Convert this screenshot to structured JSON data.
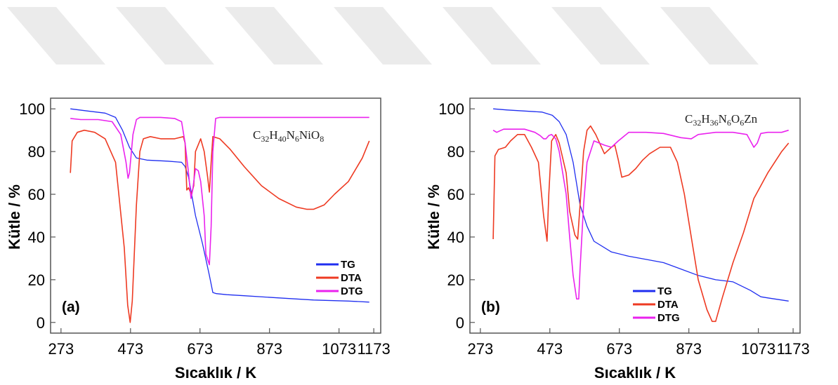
{
  "colors": {
    "TG": "#1f2ef0",
    "DTA": "#ee3a22",
    "DTG": "#ea22ee",
    "watermark": "#ebebeb"
  },
  "chart_data": [
    {
      "type": "line",
      "panel_label": "(a)",
      "annotation": "C32H40N6NiO8",
      "formula": {
        "c": "C",
        "cn": "32",
        "h": "H",
        "hn": "40",
        "n": "N",
        "nn": "6",
        "rest": "NiO",
        "on": "8"
      },
      "xlabel": "Sıcaklık / K",
      "ylabel": "Kütle / %",
      "xlim": [
        243,
        1193
      ],
      "ylim": [
        -5,
        105
      ],
      "xticks": [
        273,
        473,
        673,
        873,
        1073,
        1173
      ],
      "xtick_labels": [
        "273",
        "473",
        "673",
        "873",
        "1073",
        "1173"
      ],
      "yticks": [
        0,
        20,
        40,
        60,
        80,
        100
      ],
      "ytick_labels": [
        "0",
        "20",
        "40",
        "60",
        "80",
        "100"
      ],
      "legend": {
        "entries": [
          "TG",
          "DTA",
          "DTG"
        ],
        "position": "bottom-right"
      },
      "series": [
        {
          "name": "TG",
          "x": [
            300,
            350,
            400,
            430,
            450,
            470,
            490,
            520,
            580,
            620,
            630,
            640,
            660,
            680,
            700,
            710,
            720,
            750,
            800,
            900,
            1000,
            1100,
            1160
          ],
          "y": [
            100,
            99,
            98,
            96,
            90,
            82,
            77,
            76,
            75.5,
            75,
            73,
            68,
            50,
            37,
            22,
            14,
            13.5,
            13,
            12.5,
            11.5,
            10.5,
            10,
            9.5
          ]
        },
        {
          "name": "DTA",
          "x": [
            300,
            305,
            320,
            340,
            370,
            400,
            430,
            455,
            465,
            472,
            478,
            490,
            500,
            510,
            530,
            560,
            600,
            625,
            630,
            635,
            640,
            648,
            655,
            660,
            675,
            685,
            695,
            700,
            705,
            710,
            730,
            760,
            800,
            850,
            900,
            950,
            980,
            1000,
            1030,
            1060,
            1100,
            1140,
            1160
          ],
          "y": [
            70,
            85,
            89,
            90,
            89,
            86,
            75,
            35,
            8,
            0,
            10,
            55,
            80,
            86,
            87,
            86,
            86,
            87,
            84,
            62,
            63,
            60,
            64,
            80,
            86,
            80,
            68,
            61,
            75,
            87,
            86,
            81,
            73,
            64,
            58,
            54,
            53,
            53,
            55,
            60,
            66,
            77,
            85
          ]
        },
        {
          "name": "DTG",
          "x": [
            300,
            330,
            380,
            420,
            445,
            460,
            466,
            470,
            480,
            490,
            500,
            510,
            560,
            600,
            620,
            630,
            640,
            647,
            652,
            660,
            668,
            675,
            685,
            690,
            700,
            705,
            710,
            718,
            730,
            800,
            900,
            1000,
            1100,
            1160
          ],
          "y": [
            95.5,
            95,
            95,
            94,
            88,
            75,
            67.5,
            70,
            88,
            95,
            96,
            96,
            96,
            95.5,
            94,
            84,
            70,
            58,
            62,
            72,
            71,
            66,
            50,
            32,
            27,
            45,
            80,
            95.5,
            96,
            96,
            96,
            96,
            96,
            96
          ]
        }
      ]
    },
    {
      "type": "line",
      "panel_label": "(b)",
      "annotation": "C32H36N6O6Zn",
      "formula": {
        "c": "C",
        "cn": "32",
        "h": "H",
        "hn": "36",
        "n": "N",
        "nn": "6",
        "rest": "O",
        "on": "6",
        "tail": "Zn"
      },
      "xlabel": "Sıcaklık / K",
      "ylabel": "Kütle / %",
      "xlim": [
        243,
        1193
      ],
      "ylim": [
        -5,
        105
      ],
      "xticks": [
        273,
        473,
        673,
        873,
        1073,
        1173
      ],
      "xtick_labels": [
        "273",
        "473",
        "673",
        "873",
        "1073",
        "1173"
      ],
      "yticks": [
        0,
        20,
        40,
        60,
        80,
        100
      ],
      "ytick_labels": [
        "0",
        "20",
        "40",
        "60",
        "80",
        "100"
      ],
      "legend": {
        "entries": [
          "TG",
          "DTA",
          "DTG"
        ],
        "position": "bottom-left"
      },
      "series": [
        {
          "name": "TG",
          "x": [
            310,
            350,
            400,
            450,
            480,
            500,
            520,
            540,
            560,
            580,
            600,
            650,
            700,
            750,
            800,
            850,
            900,
            950,
            1000,
            1050,
            1080,
            1100,
            1160
          ],
          "y": [
            100,
            99.5,
            99,
            98.5,
            97,
            94,
            88,
            75,
            55,
            45,
            38,
            33,
            31,
            29.5,
            28,
            25,
            22,
            20,
            19,
            15,
            12,
            11.5,
            10
          ]
        },
        {
          "name": "DTA",
          "x": [
            310,
            315,
            325,
            345,
            360,
            380,
            400,
            420,
            440,
            455,
            465,
            470,
            478,
            490,
            500,
            520,
            530,
            545,
            553,
            560,
            570,
            580,
            590,
            605,
            630,
            650,
            660,
            670,
            680,
            700,
            720,
            740,
            760,
            790,
            820,
            840,
            860,
            880,
            900,
            925,
            940,
            950,
            970,
            1000,
            1030,
            1060,
            1100,
            1140,
            1160
          ],
          "y": [
            39,
            78,
            81,
            82,
            85,
            88,
            88,
            82,
            75,
            50,
            38,
            60,
            85,
            88,
            84,
            70,
            52,
            41,
            39,
            55,
            80,
            90,
            92,
            88,
            79,
            82,
            83,
            76,
            68,
            69,
            72,
            76,
            79,
            82,
            82,
            75,
            60,
            40,
            20,
            6,
            0.5,
            0.5,
            12,
            28,
            42,
            58,
            70,
            80,
            84
          ]
        },
        {
          "name": "DTG",
          "x": [
            310,
            320,
            340,
            370,
            400,
            430,
            445,
            455,
            462,
            470,
            478,
            490,
            500,
            510,
            520,
            530,
            540,
            550,
            556,
            560,
            570,
            580,
            600,
            630,
            650,
            670,
            700,
            750,
            800,
            850,
            880,
            900,
            950,
            1000,
            1040,
            1060,
            1070,
            1080,
            1100,
            1140,
            1160
          ],
          "y": [
            90,
            89,
            90.5,
            90.5,
            90.5,
            89,
            87.5,
            86,
            86,
            87.5,
            88,
            86,
            80,
            70,
            60,
            40,
            22,
            11,
            11,
            25,
            55,
            75,
            85,
            83,
            82,
            85,
            89,
            89,
            88.5,
            86.5,
            86,
            88,
            89,
            89,
            88,
            82,
            84,
            88.5,
            89,
            89,
            90
          ]
        }
      ]
    }
  ]
}
